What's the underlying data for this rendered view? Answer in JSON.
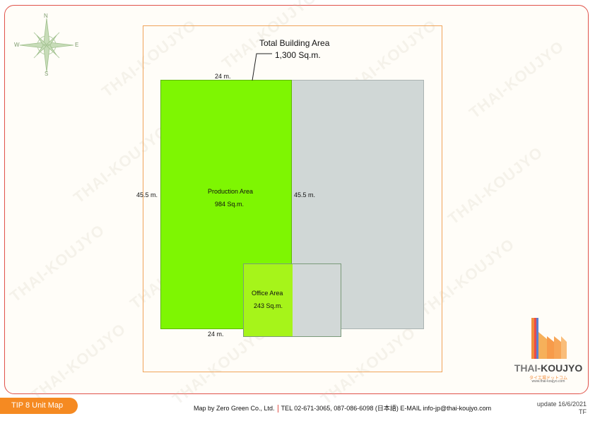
{
  "compass": {
    "n": "N",
    "s": "S",
    "e": "E",
    "w": "W"
  },
  "building": {
    "total_label": "Total Building Area",
    "total_value": "1,300 Sq.m.",
    "top_width": "24 m.",
    "bottom_width": "24 m.",
    "left_depth": "45.5 m.",
    "right_depth": "45.5 m."
  },
  "production": {
    "label": "Production Area",
    "value": "984 Sq.m.",
    "color": "#7ef602"
  },
  "office": {
    "label": "Office Area",
    "value": "243 Sq.m.",
    "color": "#a6f41a"
  },
  "watermark": "THAI-KOUJYO",
  "logo": {
    "name_part1": "THAI-",
    "name_part2": "KOUJYO",
    "subtitle": "タイ工場ドットコム",
    "url": "www.thai-koujyo.com"
  },
  "footer": {
    "tag": "TIP 8 Unit Map",
    "credit": "Map by Zero Green Co., Ltd.",
    "contact": "TEL 02-671-3065, 087-086-6098 (日本語) E-MAIL info-jp@thai-koujyo.com",
    "update": "update 16/6/2021",
    "initials": "TF"
  }
}
